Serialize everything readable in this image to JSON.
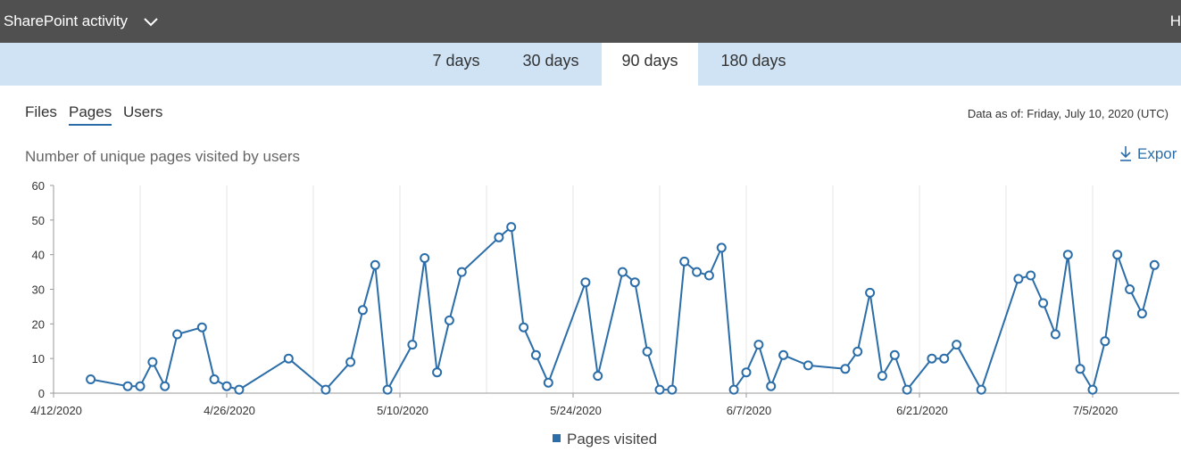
{
  "header": {
    "title": "SharePoint activity",
    "edge_text": "H"
  },
  "ranges": [
    {
      "label": "7 days",
      "selected": false
    },
    {
      "label": "30 days",
      "selected": false
    },
    {
      "label": "90 days",
      "selected": true
    },
    {
      "label": "180 days",
      "selected": false
    }
  ],
  "subtabs": [
    {
      "label": "Files",
      "active": false
    },
    {
      "label": "Pages",
      "active": true
    },
    {
      "label": "Users",
      "active": false
    }
  ],
  "as_of": "Data as of: Friday, July 10, 2020 (UTC)",
  "export_label": "Expor",
  "colors": {
    "series": "#2b6da8",
    "topbar": "#505050",
    "rangebar": "#cfe3f5"
  },
  "chart_data": {
    "type": "line",
    "title": "Number of unique pages visited by users",
    "xlabel": "",
    "ylabel": "",
    "ylim": [
      0,
      60
    ],
    "yticks": [
      0,
      10,
      20,
      30,
      40,
      50,
      60
    ],
    "x_range": [
      "2020-04-12",
      "2020-07-12"
    ],
    "x_tick_labels": [
      "4/12/2020",
      "4/26/2020",
      "5/10/2020",
      "5/24/2020",
      "6/7/2020",
      "6/21/2020",
      "7/5/2020"
    ],
    "x_tick_dates": [
      "2020-04-12",
      "2020-04-26",
      "2020-05-10",
      "2020-05-24",
      "2020-06-07",
      "2020-06-21",
      "2020-07-05"
    ],
    "grid_dates": [
      "2020-04-19",
      "2020-04-26",
      "2020-05-03",
      "2020-05-10",
      "2020-05-17",
      "2020-05-24",
      "2020-05-31",
      "2020-06-07",
      "2020-06-14",
      "2020-06-21",
      "2020-06-28",
      "2020-07-05"
    ],
    "legend_position": "bottom",
    "series": [
      {
        "name": "Pages visited",
        "points": [
          [
            "2020-04-15",
            4
          ],
          [
            "2020-04-18",
            2
          ],
          [
            "2020-04-19",
            2
          ],
          [
            "2020-04-20",
            9
          ],
          [
            "2020-04-21",
            2
          ],
          [
            "2020-04-22",
            17
          ],
          [
            "2020-04-24",
            19
          ],
          [
            "2020-04-25",
            4
          ],
          [
            "2020-04-26",
            2
          ],
          [
            "2020-04-27",
            1
          ],
          [
            "2020-05-01",
            10
          ],
          [
            "2020-05-04",
            1
          ],
          [
            "2020-05-06",
            9
          ],
          [
            "2020-05-07",
            24
          ],
          [
            "2020-05-08",
            37
          ],
          [
            "2020-05-09",
            1
          ],
          [
            "2020-05-11",
            14
          ],
          [
            "2020-05-12",
            39
          ],
          [
            "2020-05-13",
            6
          ],
          [
            "2020-05-14",
            21
          ],
          [
            "2020-05-15",
            35
          ],
          [
            "2020-05-18",
            45
          ],
          [
            "2020-05-19",
            48
          ],
          [
            "2020-05-20",
            19
          ],
          [
            "2020-05-21",
            11
          ],
          [
            "2020-05-22",
            3
          ],
          [
            "2020-05-25",
            32
          ],
          [
            "2020-05-26",
            5
          ],
          [
            "2020-05-28",
            35
          ],
          [
            "2020-05-29",
            32
          ],
          [
            "2020-05-30",
            12
          ],
          [
            "2020-05-31",
            1
          ],
          [
            "2020-06-01",
            1
          ],
          [
            "2020-06-02",
            38
          ],
          [
            "2020-06-03",
            35
          ],
          [
            "2020-06-04",
            34
          ],
          [
            "2020-06-05",
            42
          ],
          [
            "2020-06-06",
            1
          ],
          [
            "2020-06-07",
            6
          ],
          [
            "2020-06-08",
            14
          ],
          [
            "2020-06-09",
            2
          ],
          [
            "2020-06-10",
            11
          ],
          [
            "2020-06-12",
            8
          ],
          [
            "2020-06-15",
            7
          ],
          [
            "2020-06-16",
            12
          ],
          [
            "2020-06-17",
            29
          ],
          [
            "2020-06-18",
            5
          ],
          [
            "2020-06-19",
            11
          ],
          [
            "2020-06-20",
            1
          ],
          [
            "2020-06-22",
            10
          ],
          [
            "2020-06-23",
            10
          ],
          [
            "2020-06-24",
            14
          ],
          [
            "2020-06-26",
            1
          ],
          [
            "2020-06-29",
            33
          ],
          [
            "2020-06-30",
            34
          ],
          [
            "2020-07-01",
            26
          ],
          [
            "2020-07-02",
            17
          ],
          [
            "2020-07-03",
            40
          ],
          [
            "2020-07-04",
            7
          ],
          [
            "2020-07-05",
            1
          ],
          [
            "2020-07-06",
            15
          ],
          [
            "2020-07-07",
            40
          ],
          [
            "2020-07-08",
            30
          ],
          [
            "2020-07-09",
            23
          ],
          [
            "2020-07-10",
            37
          ]
        ]
      }
    ]
  }
}
